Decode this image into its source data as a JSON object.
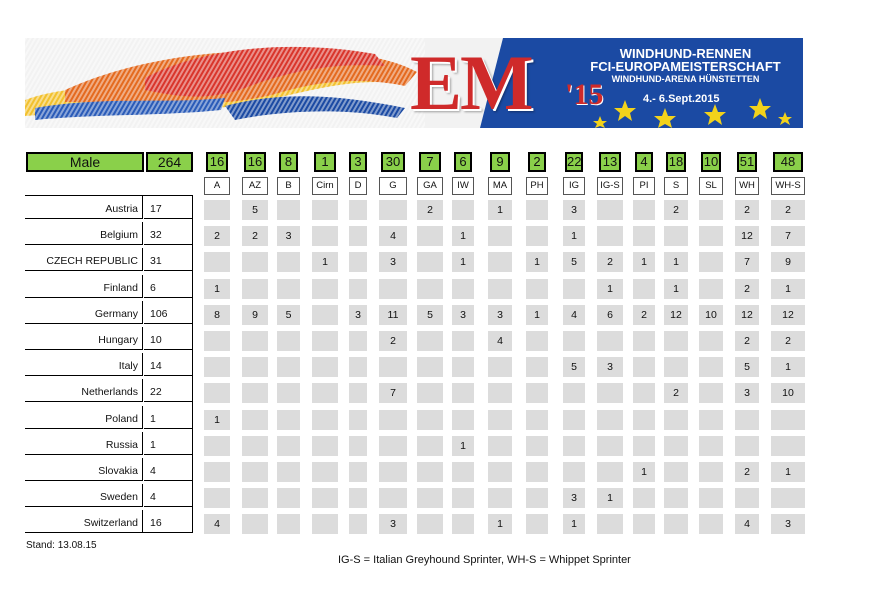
{
  "banner": {
    "title_line1": "WINDHUND-RENNEN",
    "title_line2": "FCI-EUROPAMEISTERSCHAFT",
    "subtitle": "WINDHUND-ARENA HÜNSTETTEN",
    "logo_text": "EM",
    "logo_year": "'15",
    "dates": "4.- 6.Sept.2015",
    "colors": {
      "blue": "#1b4aa3",
      "red": "#cf2a2a",
      "star": "#f2d21b"
    }
  },
  "summary": {
    "label": "Male",
    "total": "264"
  },
  "columns": [
    {
      "code": "A",
      "count": "16"
    },
    {
      "code": "AZ",
      "count": "16"
    },
    {
      "code": "B",
      "count": "8"
    },
    {
      "code": "Cirn",
      "count": "1"
    },
    {
      "code": "D",
      "count": "3"
    },
    {
      "code": "G",
      "count": "30"
    },
    {
      "code": "GA",
      "count": "7"
    },
    {
      "code": "IW",
      "count": "6"
    },
    {
      "code": "MA",
      "count": "9"
    },
    {
      "code": "PH",
      "count": "2"
    },
    {
      "code": "IG",
      "count": "22"
    },
    {
      "code": "IG-S",
      "count": "13"
    },
    {
      "code": "PI",
      "count": "4"
    },
    {
      "code": "S",
      "count": "18"
    },
    {
      "code": "SL",
      "count": "10"
    },
    {
      "code": "WH",
      "count": "51"
    },
    {
      "code": "WH-S",
      "count": "48"
    }
  ],
  "rows": [
    {
      "country": "Austria",
      "total": "17",
      "cells": [
        "",
        "5",
        "",
        "",
        "",
        "",
        "2",
        "",
        "1",
        "",
        "3",
        "",
        "",
        "2",
        "",
        "2",
        "2"
      ]
    },
    {
      "country": "Belgium",
      "total": "32",
      "cells": [
        "2",
        "2",
        "3",
        "",
        "",
        "4",
        "",
        "1",
        "",
        "",
        "1",
        "",
        "",
        "",
        "",
        "12",
        "7"
      ]
    },
    {
      "country": "CZECH REPUBLIC",
      "total": "31",
      "cells": [
        "",
        "",
        "",
        "1",
        "",
        "3",
        "",
        "1",
        "",
        "1",
        "5",
        "2",
        "1",
        "1",
        "",
        "7",
        "9"
      ]
    },
    {
      "country": "Finland",
      "total": "6",
      "cells": [
        "1",
        "",
        "",
        "",
        "",
        "",
        "",
        "",
        "",
        "",
        "",
        "1",
        "",
        "1",
        "",
        "2",
        "1"
      ]
    },
    {
      "country": "Germany",
      "total": "106",
      "cells": [
        "8",
        "9",
        "5",
        "",
        "3",
        "11",
        "5",
        "3",
        "3",
        "1",
        "4",
        "6",
        "2",
        "12",
        "10",
        "12",
        "12"
      ]
    },
    {
      "country": "Hungary",
      "total": "10",
      "cells": [
        "",
        "",
        "",
        "",
        "",
        "2",
        "",
        "",
        "4",
        "",
        "",
        "",
        "",
        "",
        "",
        "2",
        "2"
      ]
    },
    {
      "country": "Italy",
      "total": "14",
      "cells": [
        "",
        "",
        "",
        "",
        "",
        "",
        "",
        "",
        "",
        "",
        "5",
        "3",
        "",
        "",
        "",
        "5",
        "1"
      ]
    },
    {
      "country": "Netherlands",
      "total": "22",
      "cells": [
        "",
        "",
        "",
        "",
        "",
        "7",
        "",
        "",
        "",
        "",
        "",
        "",
        "",
        "2",
        "",
        "3",
        "10"
      ]
    },
    {
      "country": "Poland",
      "total": "1",
      "cells": [
        "1",
        "",
        "",
        "",
        "",
        "",
        "",
        "",
        "",
        "",
        "",
        "",
        "",
        "",
        "",
        "",
        ""
      ]
    },
    {
      "country": "Russia",
      "total": "1",
      "cells": [
        "",
        "",
        "",
        "",
        "",
        "",
        "",
        "1",
        "",
        "",
        "",
        "",
        "",
        "",
        "",
        "",
        ""
      ]
    },
    {
      "country": "Slovakia",
      "total": "4",
      "cells": [
        "",
        "",
        "",
        "",
        "",
        "",
        "",
        "",
        "",
        "",
        "",
        "",
        "1",
        "",
        "",
        "2",
        "1"
      ]
    },
    {
      "country": "Sweden",
      "total": "4",
      "cells": [
        "",
        "",
        "",
        "",
        "",
        "",
        "",
        "",
        "",
        "",
        "3",
        "1",
        "",
        "",
        "",
        "",
        ""
      ]
    },
    {
      "country": "Switzerland",
      "total": "16",
      "cells": [
        "4",
        "",
        "",
        "",
        "",
        "3",
        "",
        "",
        "1",
        "",
        "1",
        "",
        "",
        "",
        "",
        "4",
        "3"
      ]
    }
  ],
  "footer": {
    "stand": "Stand: 13.08.15",
    "legend": "IG-S = Italian Greyhound Sprinter, WH-S = Whippet Sprinter"
  }
}
